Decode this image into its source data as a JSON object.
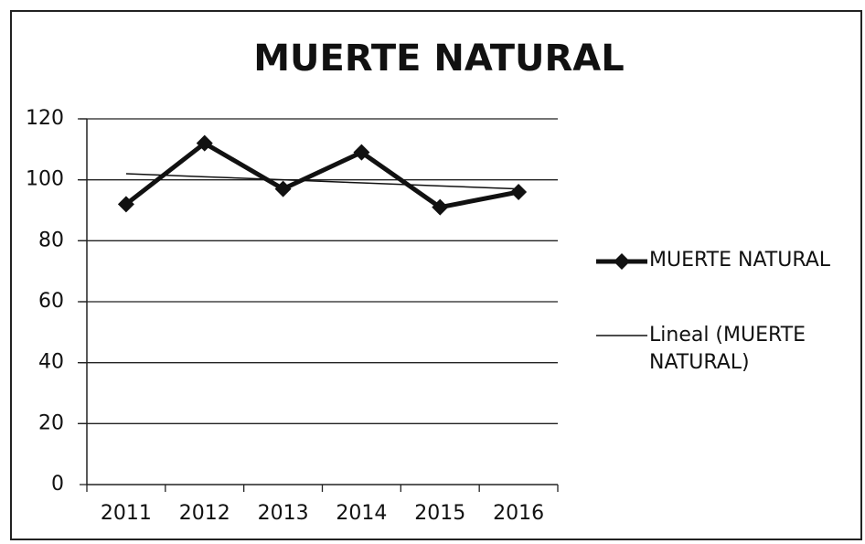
{
  "chart_data": {
    "type": "line",
    "title": "MUERTE NATURAL",
    "categories": [
      "2011",
      "2012",
      "2013",
      "2014",
      "2015",
      "2016"
    ],
    "series": [
      {
        "name": "MUERTE NATURAL",
        "color": "#111111",
        "values": [
          92,
          112,
          97,
          109,
          91,
          96
        ]
      },
      {
        "name": "Lineal (MUERTE NATURAL)",
        "color": "#111111",
        "values": [
          102,
          101,
          100,
          99,
          98,
          97
        ]
      }
    ],
    "ylim": [
      0,
      120
    ],
    "yticks": [
      0,
      20,
      40,
      60,
      80,
      100,
      120
    ],
    "grid": true,
    "legend": "right"
  }
}
